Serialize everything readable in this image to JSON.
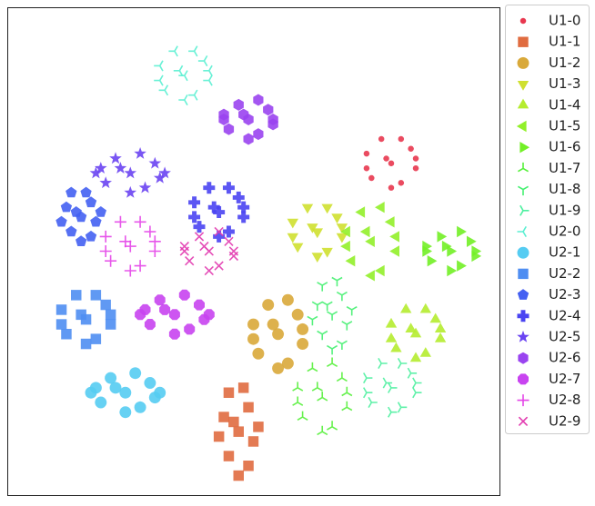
{
  "chart_data": {
    "type": "scatter",
    "series": [
      {
        "name": "U1-0",
        "color": "#e8374f",
        "marker": "point",
        "x": [
          78,
          73,
          83,
          76,
          80,
          74,
          82,
          78,
          77,
          80,
          83,
          73
        ],
        "y": [
          68,
          70,
          67,
          73,
          64,
          65,
          71,
          63,
          69,
          73,
          69,
          67
        ]
      },
      {
        "name": "U1-1",
        "color": "#e06c40",
        "marker": "square",
        "x": [
          47,
          44,
          50,
          45,
          49,
          45,
          49,
          47,
          46,
          48,
          51,
          43
        ],
        "y": [
          13,
          16,
          11,
          21,
          6,
          8,
          18,
          4,
          15,
          22,
          14,
          12
        ]
      },
      {
        "name": "U1-2",
        "color": "#d9a93a",
        "marker": "circle",
        "x": [
          55,
          50,
          60,
          53,
          57,
          51,
          59,
          55,
          54,
          57,
          60,
          50
        ],
        "y": [
          33,
          35,
          31,
          39,
          27,
          29,
          37,
          26,
          35,
          40,
          34,
          32
        ]
      },
      {
        "name": "U1-3",
        "color": "#cfe030",
        "marker": "triangle-down",
        "x": [
          63,
          58,
          68,
          61,
          65,
          59,
          67,
          63,
          62,
          65,
          68,
          58
        ],
        "y": [
          54,
          56,
          53,
          59,
          50,
          51,
          57,
          49,
          55,
          59,
          55,
          53
        ]
      },
      {
        "name": "U1-4",
        "color": "#b5ec30",
        "marker": "triangle-up",
        "x": [
          83,
          78,
          88,
          81,
          85,
          79,
          87,
          83,
          82,
          85,
          88,
          78
        ],
        "y": [
          33,
          35,
          32,
          38,
          29,
          30,
          36,
          28,
          34,
          38,
          34,
          32
        ]
      },
      {
        "name": "U1-5",
        "color": "#92f02a",
        "marker": "triangle-left",
        "x": [
          74,
          69,
          79,
          72,
          76,
          70,
          78,
          74,
          73,
          76,
          79,
          69
        ],
        "y": [
          52,
          54,
          50,
          58,
          46,
          48,
          56,
          45,
          54,
          59,
          53,
          51
        ]
      },
      {
        "name": "U1-6",
        "color": "#72f026",
        "marker": "triangle-right",
        "x": [
          90,
          85,
          95,
          88,
          92,
          86,
          94,
          90,
          89,
          92,
          95,
          85
        ],
        "y": [
          50,
          51,
          49,
          53,
          47,
          48,
          52,
          46,
          51,
          54,
          50,
          50
        ]
      },
      {
        "name": "U1-7",
        "color": "#55f03a",
        "marker": "tri-down",
        "x": [
          64,
          59,
          69,
          62,
          66,
          60,
          68,
          64,
          63,
          66,
          69,
          59
        ],
        "y": [
          20,
          22,
          18,
          26,
          14,
          16,
          24,
          13,
          22,
          27,
          21,
          19
        ]
      },
      {
        "name": "U1-8",
        "color": "#44f070",
        "marker": "tri-up",
        "x": [
          66,
          63,
          69,
          64,
          68,
          64,
          68,
          66,
          65,
          67,
          70,
          62
        ],
        "y": [
          37,
          39,
          35,
          43,
          31,
          33,
          41,
          30,
          39,
          44,
          38,
          36
        ]
      },
      {
        "name": "U1-9",
        "color": "#4ef0a0",
        "marker": "tri-left",
        "x": [
          78,
          73,
          83,
          76,
          80,
          74,
          82,
          78,
          77,
          80,
          83,
          73
        ],
        "y": [
          22,
          24,
          21,
          27,
          18,
          19,
          25,
          17,
          23,
          27,
          23,
          21
        ]
      },
      {
        "name": "U2-0",
        "color": "#5aefd2",
        "marker": "tri-right",
        "x": [
          36,
          31,
          41,
          34,
          38,
          32,
          40,
          36,
          35,
          38,
          41,
          31
        ],
        "y": [
          86,
          88,
          85,
          91,
          82,
          83,
          89,
          81,
          87,
          91,
          87,
          85
        ]
      },
      {
        "name": "U2-1",
        "color": "#55ccf2",
        "marker": "circle",
        "x": [
          24,
          18,
          30,
          21,
          27,
          19,
          29,
          24,
          22,
          26,
          31,
          17
        ],
        "y": [
          21,
          22,
          20,
          24,
          18,
          19,
          23,
          17,
          22,
          25,
          21,
          21
        ]
      },
      {
        "name": "U2-2",
        "color": "#4f8ef2",
        "marker": "square",
        "x": [
          16,
          11,
          21,
          14,
          18,
          12,
          20,
          16,
          15,
          18,
          21,
          11
        ],
        "y": [
          36,
          38,
          35,
          41,
          32,
          33,
          39,
          31,
          37,
          41,
          37,
          35
        ]
      },
      {
        "name": "U2-3",
        "color": "#4460f2",
        "marker": "pentagon",
        "x": [
          15,
          12,
          18,
          13,
          17,
          13,
          17,
          15,
          14,
          16,
          19,
          11
        ],
        "y": [
          57,
          59,
          56,
          62,
          53,
          54,
          60,
          52,
          58,
          62,
          58,
          56
        ]
      },
      {
        "name": "U2-4",
        "color": "#4a44f2",
        "marker": "plus-filled",
        "x": [
          43,
          38,
          48,
          41,
          45,
          39,
          47,
          43,
          42,
          45,
          48,
          38
        ],
        "y": [
          58,
          60,
          57,
          63,
          54,
          55,
          61,
          53,
          59,
          63,
          59,
          57
        ]
      },
      {
        "name": "U2-5",
        "color": "#6a44f2",
        "marker": "star",
        "x": [
          25,
          19,
          31,
          22,
          28,
          20,
          30,
          25,
          23,
          27,
          32,
          18
        ],
        "y": [
          66,
          67,
          65,
          69,
          63,
          64,
          68,
          62,
          67,
          70,
          66,
          66
        ]
      },
      {
        "name": "U2-6",
        "color": "#9a44f0",
        "marker": "hexagon",
        "x": [
          49,
          44,
          54,
          47,
          51,
          45,
          53,
          49,
          48,
          51,
          54,
          44
        ],
        "y": [
          77,
          78,
          76,
          80,
          74,
          75,
          79,
          73,
          78,
          81,
          77,
          77
        ]
      },
      {
        "name": "U2-7",
        "color": "#c844f0",
        "marker": "octagon",
        "x": [
          34,
          28,
          40,
          31,
          37,
          29,
          39,
          34,
          32,
          36,
          41,
          27
        ],
        "y": [
          37,
          38,
          36,
          40,
          34,
          35,
          39,
          33,
          38,
          41,
          37,
          37
        ]
      },
      {
        "name": "U2-8",
        "color": "#e444e8",
        "marker": "plus",
        "x": [
          25,
          20,
          30,
          23,
          27,
          21,
          29,
          25,
          24,
          27,
          30,
          20
        ],
        "y": [
          51,
          53,
          50,
          56,
          47,
          48,
          54,
          46,
          52,
          56,
          52,
          50
        ]
      },
      {
        "name": "U2-9",
        "color": "#e23cb0",
        "marker": "x",
        "x": [
          41,
          36,
          46,
          39,
          43,
          37,
          45,
          41,
          40,
          43,
          46,
          36
        ],
        "y": [
          50,
          51,
          49,
          53,
          47,
          48,
          52,
          46,
          51,
          54,
          50,
          50
        ]
      }
    ]
  }
}
